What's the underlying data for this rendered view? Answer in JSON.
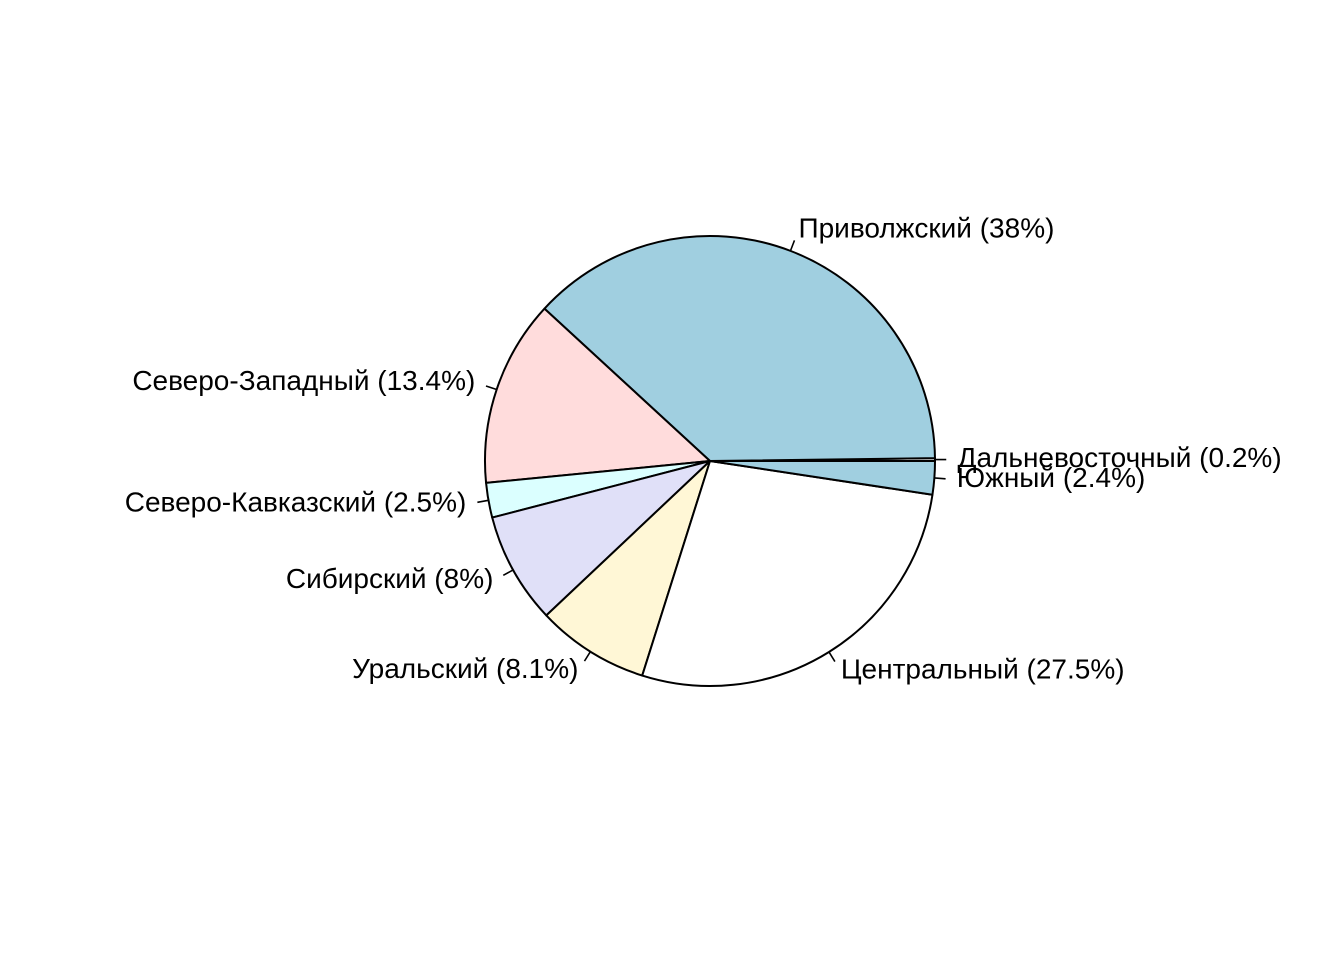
{
  "chart_data": {
    "type": "pie",
    "title": "",
    "start_angle_deg": 0,
    "direction": "counterclockwise",
    "slices": [
      {
        "name": "Дальневосточный",
        "value": 0.2,
        "label": "Дальневосточный  (0.2%)",
        "color": "#ffffff"
      },
      {
        "name": "Приволжский",
        "value": 38,
        "label": "Приволжский  (38%)",
        "color": "#a0cfe0"
      },
      {
        "name": "Северо-Западный",
        "value": 13.4,
        "label": "Северо-Западный  (13.4%)",
        "color": "#ffdcdc"
      },
      {
        "name": "Северо-Кавказский",
        "value": 2.5,
        "label": "Северо-Кавказский  (2.5%)",
        "color": "#dbffff"
      },
      {
        "name": "Сибирский",
        "value": 8,
        "label": "Сибирский  (8%)",
        "color": "#e0e0f8"
      },
      {
        "name": "Уральский",
        "value": 8.1,
        "label": "Уральский  (8.1%)",
        "color": "#fff7d6"
      },
      {
        "name": "Центральный",
        "value": 27.5,
        "label": "Центральный  (27.5%)",
        "color": "#ffffff"
      },
      {
        "name": "Южный",
        "value": 2.4,
        "label": "Южный  (2.4%)",
        "color": "#a0cfe0"
      }
    ]
  }
}
